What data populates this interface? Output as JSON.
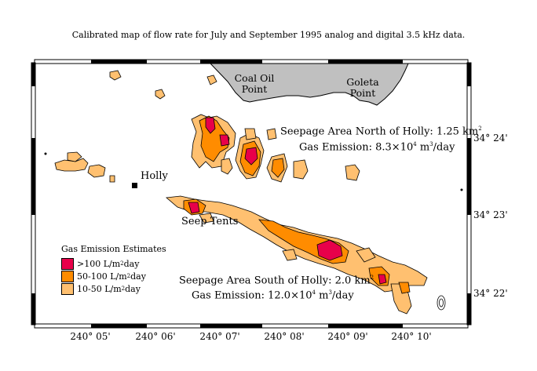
{
  "title": "Calibrated map of flow rate for July and September 1995 analog and digital 3.5 kHz data.",
  "colors": {
    "high": "#e8004a",
    "medium": "#ff8c00",
    "low": "#ffc070",
    "land": "#c0c0c0",
    "frame": "#000000"
  },
  "x_ticks": [
    "240° 05'",
    "240° 06'",
    "240° 07'",
    "240° 08'",
    "240° 09'",
    "240° 10'"
  ],
  "y_ticks": [
    "34° 24'",
    "34° 23'",
    "34° 22'"
  ],
  "land_labels": {
    "coal_oil_point": "Coal Oil Point",
    "goleta_point": "Goleta Point"
  },
  "places": {
    "holly": "Holly",
    "seep_tents": "Seep Tents"
  },
  "north_area": {
    "label": "Seepage Area North of Holly: 1.25 km",
    "label_sup": "2",
    "emission": "Gas Emission: 8.3×10",
    "emission_exp": "4",
    "emission_unit": " m",
    "emission_unit_sup": "3",
    "emission_tail": "/day"
  },
  "south_area": {
    "label": "Seepage Area South of Holly: 2.0 km",
    "label_sup": "2",
    "emission": "Gas Emission: 12.0×10",
    "emission_exp": "4",
    "emission_unit": " m",
    "emission_unit_sup": "3",
    "emission_tail": "/day"
  },
  "legend": {
    "title": "Gas Emission Estimates",
    "items": [
      {
        "range": ">100 L/m",
        "sup": "2",
        "tail": "day",
        "color": "#e8004a"
      },
      {
        "range": "50-100 L/m",
        "sup": "2",
        "tail": "day",
        "color": "#ff8c00"
      },
      {
        "range": "10-50 L/m",
        "sup": "2",
        "tail": "day",
        "color": "#ffc070"
      }
    ]
  }
}
